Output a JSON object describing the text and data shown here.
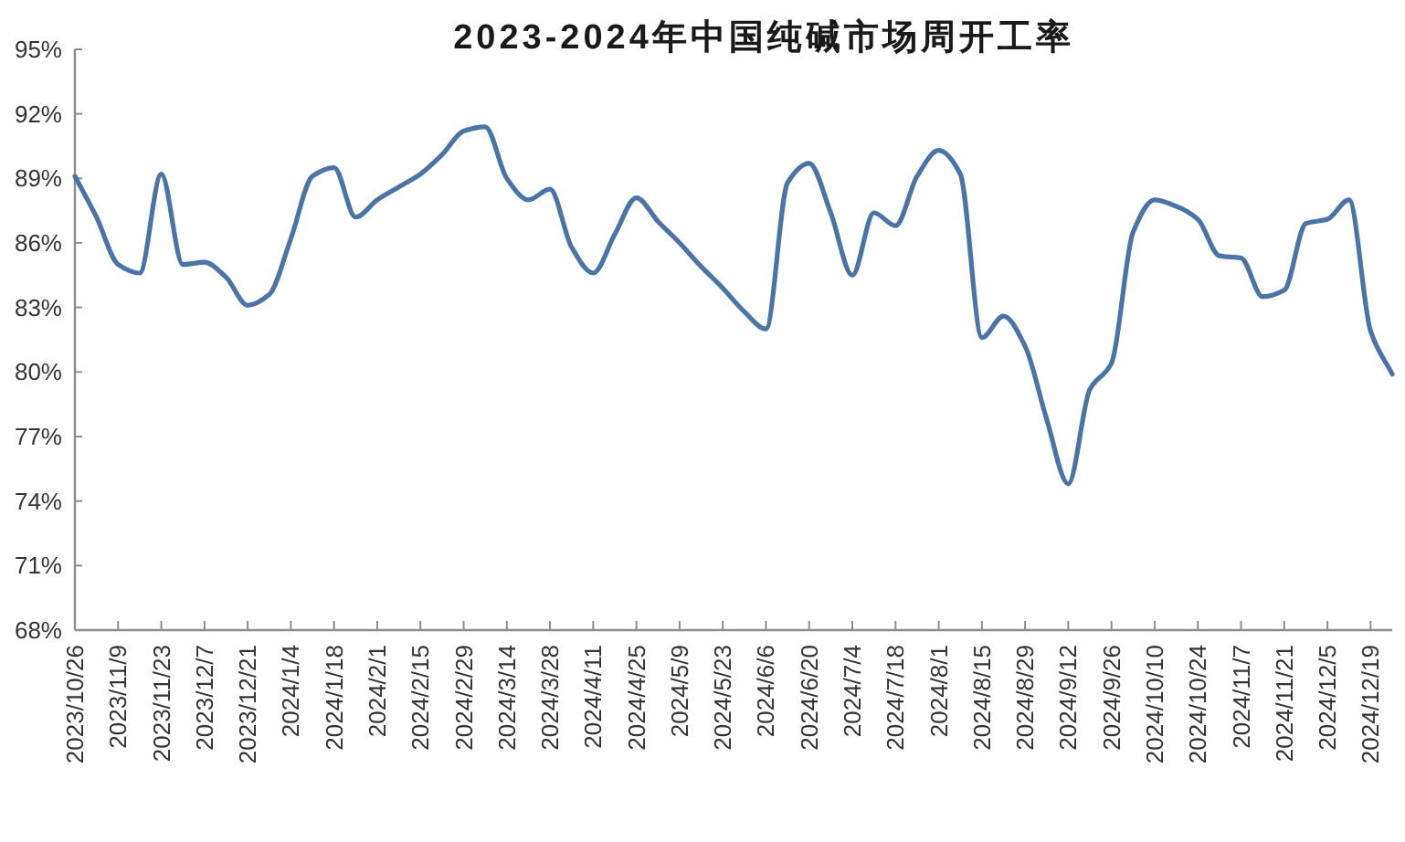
{
  "chart_data": {
    "type": "line",
    "title": "2023-2024年中国纯碱市场周开工率",
    "categories": [
      "2023/10/26",
      null,
      "2023/11/9",
      null,
      "2023/11/23",
      null,
      "2023/12/7",
      null,
      "2023/12/21",
      null,
      "2024/1/4",
      null,
      "2024/1/18",
      null,
      "2024/2/1",
      null,
      "2024/2/15",
      null,
      "2024/2/29",
      null,
      "2024/3/14",
      null,
      "2024/3/28",
      null,
      "2024/4/11",
      null,
      "2024/4/25",
      null,
      "2024/5/9",
      null,
      "2024/5/23",
      null,
      "2024/6/6",
      null,
      "2024/6/20",
      null,
      "2024/7/4",
      null,
      "2024/7/18",
      null,
      "2024/8/1",
      null,
      "2024/8/15",
      null,
      "2024/8/29",
      null,
      "2024/9/12",
      null,
      "2024/9/26",
      null,
      "2024/10/10",
      null,
      "2024/10/24",
      null,
      "2024/11/7",
      null,
      "2024/11/21",
      null,
      "2024/12/5",
      null,
      "2024/12/19",
      null
    ],
    "values": [
      89.1,
      87.2,
      85.0,
      84.6,
      89.2,
      85.0,
      85.1,
      84.4,
      83.1,
      83.6,
      86.2,
      89.1,
      89.5,
      87.2,
      88.0,
      88.6,
      89.2,
      90.1,
      91.2,
      91.4,
      89.0,
      88.0,
      88.5,
      85.8,
      84.6,
      86.4,
      88.1,
      87.0,
      86.0,
      84.9,
      83.9,
      82.8,
      82.0,
      88.8,
      89.7,
      87.4,
      84.5,
      87.4,
      86.8,
      89.1,
      90.3,
      89.2,
      81.6,
      82.6,
      81.2,
      77.8,
      74.8,
      79.2,
      80.4,
      86.5,
      88.0,
      87.7,
      87.1,
      85.4,
      85.3,
      83.5,
      83.8,
      86.9,
      87.1,
      88.0,
      81.9,
      79.9
    ],
    "color": "#4a74a8",
    "line_style": "solid",
    "ylim": [
      68,
      95
    ],
    "yticks": [
      {
        "value": 68,
        "label": "68%"
      },
      {
        "value": 71,
        "label": "71%"
      },
      {
        "value": 74,
        "label": "74%"
      },
      {
        "value": 77,
        "label": "77%"
      },
      {
        "value": 80,
        "label": "80%"
      },
      {
        "value": 83,
        "label": "83%"
      },
      {
        "value": 86,
        "label": "86%"
      },
      {
        "value": 89,
        "label": "89%"
      },
      {
        "value": 92,
        "label": "92%"
      },
      {
        "value": 95,
        "label": "95%"
      }
    ]
  }
}
